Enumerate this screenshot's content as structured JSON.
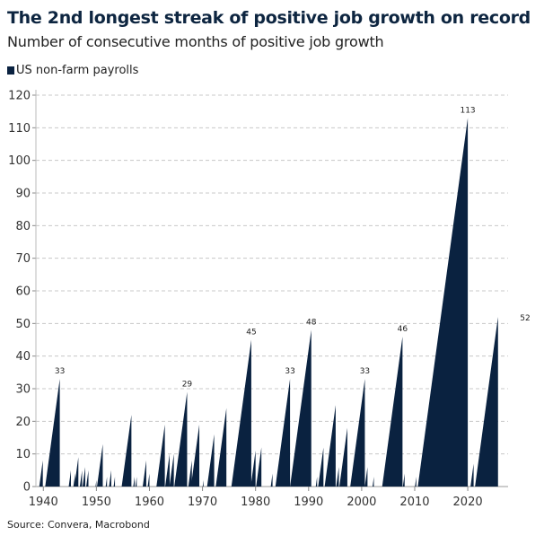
{
  "title": "The 2nd longest streak of positive job growth on record",
  "subtitle": "Number of consecutive months of positive job growth",
  "source": "Source: Convera, Macrobond",
  "colors": {
    "series": "#0a2240",
    "grid": "#c8c8c8",
    "text": "#0d2540"
  },
  "chart_data": {
    "type": "area",
    "title": "The 2nd longest streak of positive job growth on record",
    "subtitle": "Number of consecutive months of positive job growth",
    "xlabel": "",
    "ylabel": "",
    "xlim": [
      1938.6,
      2027.6
    ],
    "ylim": [
      0,
      120
    ],
    "grid": true,
    "legend": "top-left",
    "x_ticks": [
      "1940",
      "1950",
      "1960",
      "1970",
      "1980",
      "1990",
      "2000",
      "2010",
      "2020"
    ],
    "y_ticks": [
      "0",
      "10",
      "20",
      "30",
      "40",
      "50",
      "60",
      "70",
      "80",
      "90",
      "100",
      "110",
      "120"
    ],
    "series": [
      {
        "name": "US non-farm payrolls",
        "note_streaks": "each streak: end year, length in months",
        "streaks": [
          {
            "end": 1939.9,
            "months": 8
          },
          {
            "end": 1943.1,
            "months": 33,
            "label": "33"
          },
          {
            "end": 1945.2,
            "months": 5
          },
          {
            "end": 1946.0,
            "months": 4
          },
          {
            "end": 1946.6,
            "months": 9
          },
          {
            "end": 1947.3,
            "months": 5
          },
          {
            "end": 1947.9,
            "months": 6
          },
          {
            "end": 1948.5,
            "months": 5
          },
          {
            "end": 1950.0,
            "months": 2
          },
          {
            "end": 1951.2,
            "months": 13
          },
          {
            "end": 1952.0,
            "months": 3
          },
          {
            "end": 1952.8,
            "months": 5
          },
          {
            "end": 1953.5,
            "months": 3
          },
          {
            "end": 1956.6,
            "months": 22
          },
          {
            "end": 1957.2,
            "months": 3
          },
          {
            "end": 1957.6,
            "months": 3
          },
          {
            "end": 1959.4,
            "months": 8
          },
          {
            "end": 1960.0,
            "months": 4
          },
          {
            "end": 1962.9,
            "months": 19
          },
          {
            "end": 1963.8,
            "months": 10
          },
          {
            "end": 1964.6,
            "months": 10
          },
          {
            "end": 1967.1,
            "months": 29,
            "label": "29"
          },
          {
            "end": 1968.0,
            "months": 8
          },
          {
            "end": 1969.4,
            "months": 19
          },
          {
            "end": 1970.2,
            "months": 2
          },
          {
            "end": 1972.2,
            "months": 16
          },
          {
            "end": 1974.5,
            "months": 24
          },
          {
            "end": 1979.2,
            "months": 45,
            "label": "45"
          },
          {
            "end": 1980.0,
            "months": 11
          },
          {
            "end": 1981.1,
            "months": 12
          },
          {
            "end": 1983.2,
            "months": 4
          },
          {
            "end": 1986.5,
            "months": 33,
            "label": "33"
          },
          {
            "end": 1990.5,
            "months": 48,
            "label": "48"
          },
          {
            "end": 1991.6,
            "months": 3
          },
          {
            "end": 1992.8,
            "months": 12
          },
          {
            "end": 1995.1,
            "months": 25
          },
          {
            "end": 1995.7,
            "months": 6
          },
          {
            "end": 1997.3,
            "months": 18
          },
          {
            "end": 2000.6,
            "months": 33,
            "label": "33"
          },
          {
            "end": 2001.1,
            "months": 6
          },
          {
            "end": 2002.3,
            "months": 3
          },
          {
            "end": 2007.7,
            "months": 46,
            "label": "46"
          },
          {
            "end": 2008.1,
            "months": 4
          },
          {
            "end": 2010.3,
            "months": 3
          },
          {
            "end": 2020.0,
            "months": 113,
            "label": "113"
          },
          {
            "end": 2021.1,
            "months": 7
          },
          {
            "end": 2025.7,
            "months": 52,
            "label": "52"
          }
        ]
      }
    ]
  }
}
